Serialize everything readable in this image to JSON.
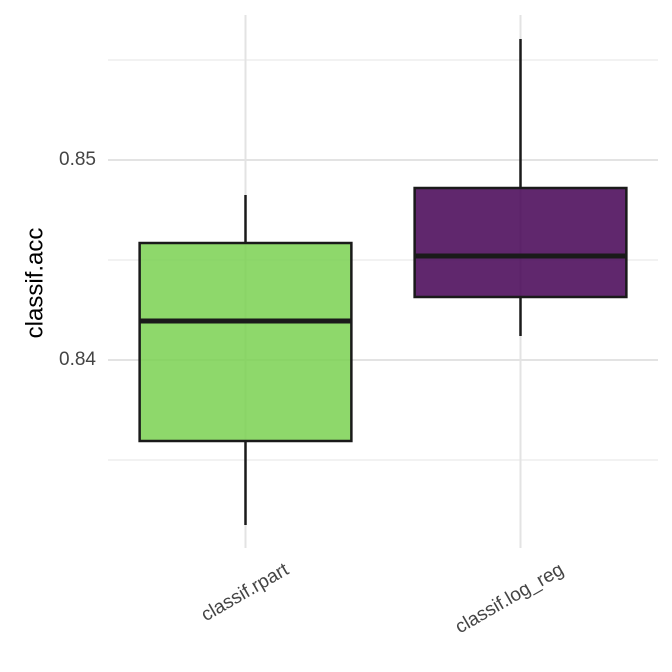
{
  "chart_data": {
    "type": "box",
    "y_label": "classif.acc",
    "categories": [
      "classif.rpart",
      "classif.log_reg"
    ],
    "min": [
      0.83175,
      0.8412
    ],
    "q1": [
      0.83595,
      0.84315
    ],
    "median": [
      0.84195,
      0.8452
    ],
    "q3": [
      0.84585,
      0.8486
    ],
    "max": [
      0.84825,
      0.85605
    ],
    "colors": [
      "#7ad151",
      "#440154"
    ],
    "ylim": [
      0.8306,
      0.85725
    ],
    "yticks": [
      0.84,
      0.85
    ],
    "yminor": [
      0.835,
      0.845,
      0.855
    ],
    "grid": true
  }
}
